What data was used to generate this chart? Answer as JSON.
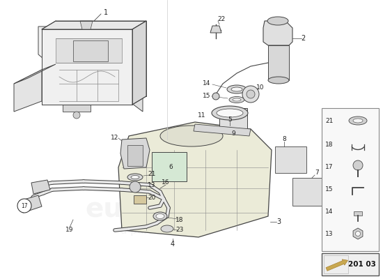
{
  "background_color": "#ffffff",
  "part_number_box": "201 03",
  "fig_width": 5.5,
  "fig_height": 4.0,
  "dpi": 100,
  "line_color": "#444444",
  "light_line": "#888888",
  "very_light": "#bbbbbb",
  "fill_light": "#e8e8e8",
  "fill_mid": "#d0d0d0",
  "watermark_color": "#dddddd"
}
